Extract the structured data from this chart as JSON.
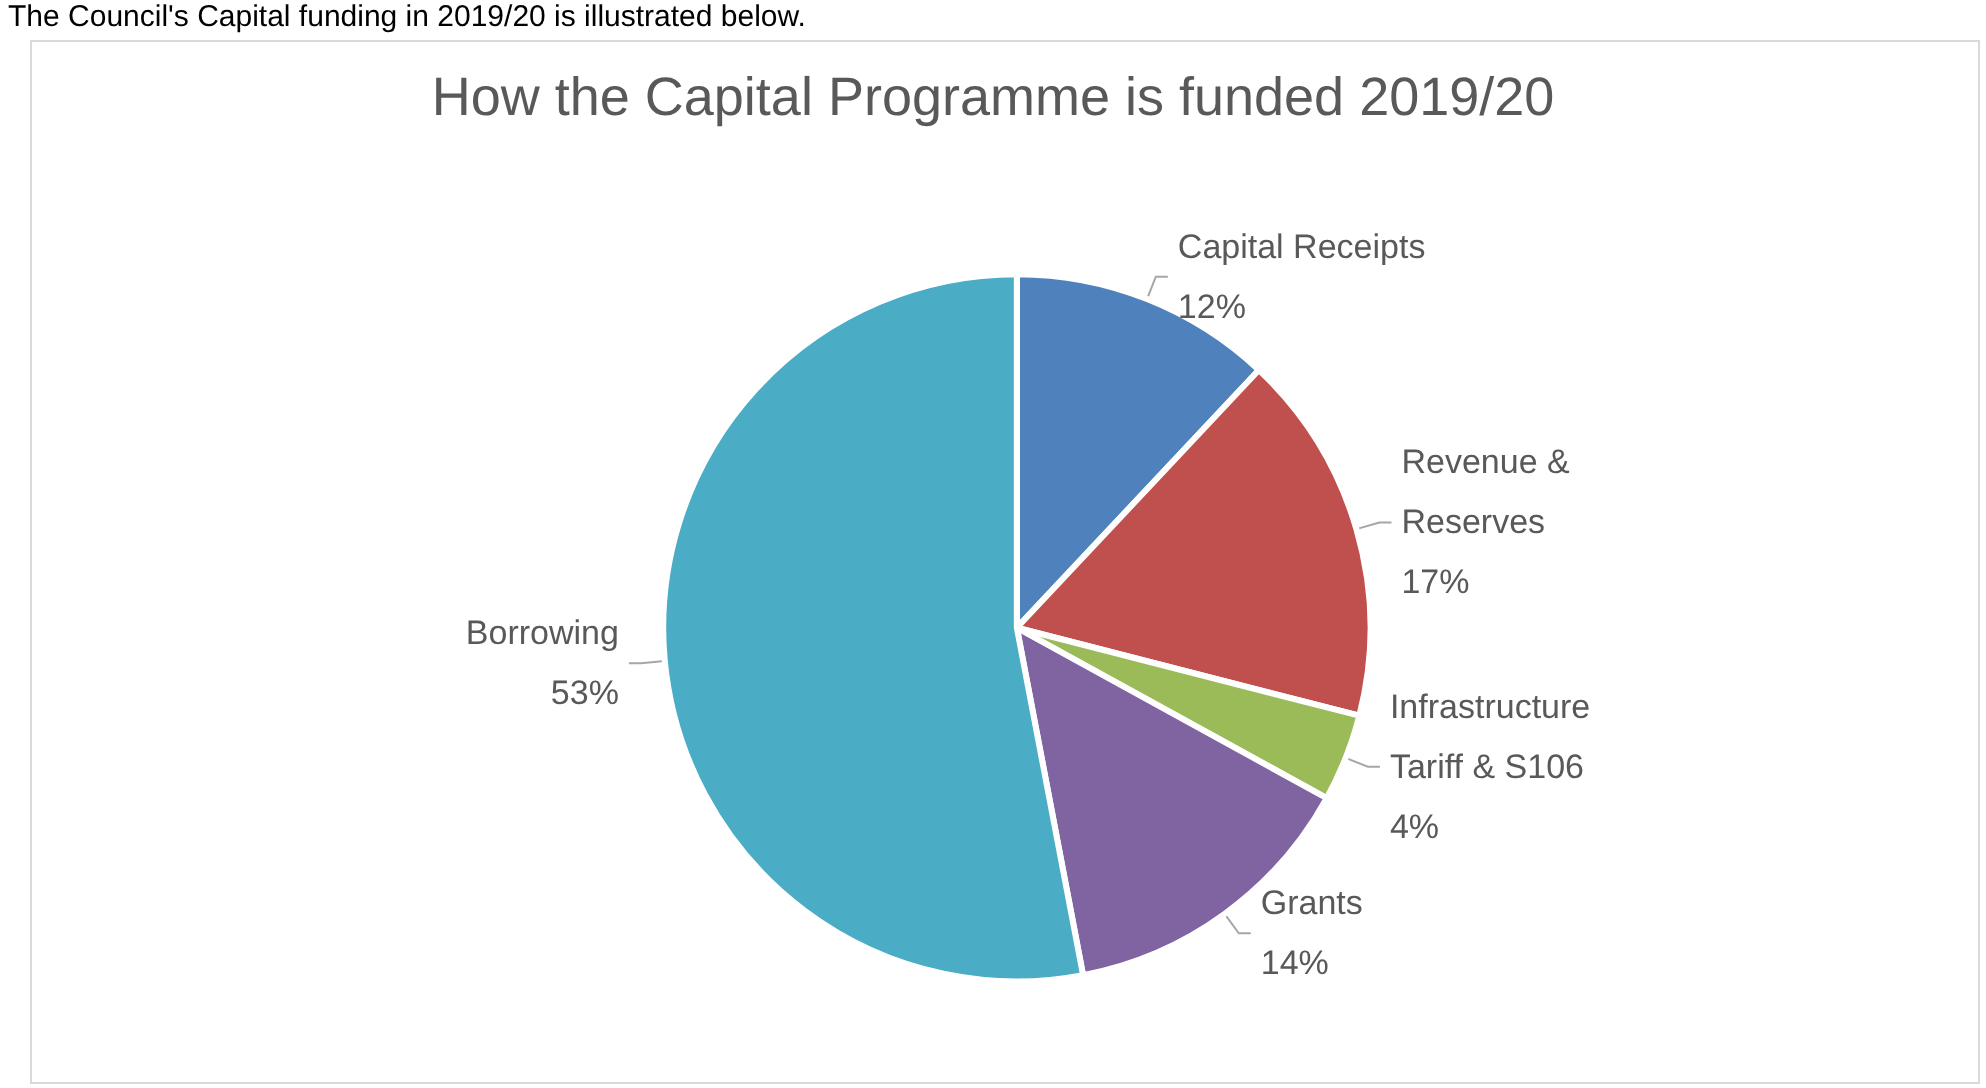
{
  "chart_data": {
    "type": "pie",
    "title": "How the Capital Programme is funded 2019/20",
    "annotations": [
      "The Council's Capital funding in 2019/20 is illustrated below."
    ],
    "categories": [
      "Capital Receipts",
      "Revenue & Reserves",
      "Infrastructure Tariff & S106",
      "Grants",
      "Borrowing"
    ],
    "values": [
      12,
      17,
      4,
      14,
      53
    ],
    "value_labels": [
      "12%",
      "17%",
      "4%",
      "14%",
      "53%"
    ],
    "colors": [
      "#4f81bd",
      "#c0504d",
      "#9bbb59",
      "#8064a2",
      "#4bacc6"
    ],
    "legend": false
  }
}
